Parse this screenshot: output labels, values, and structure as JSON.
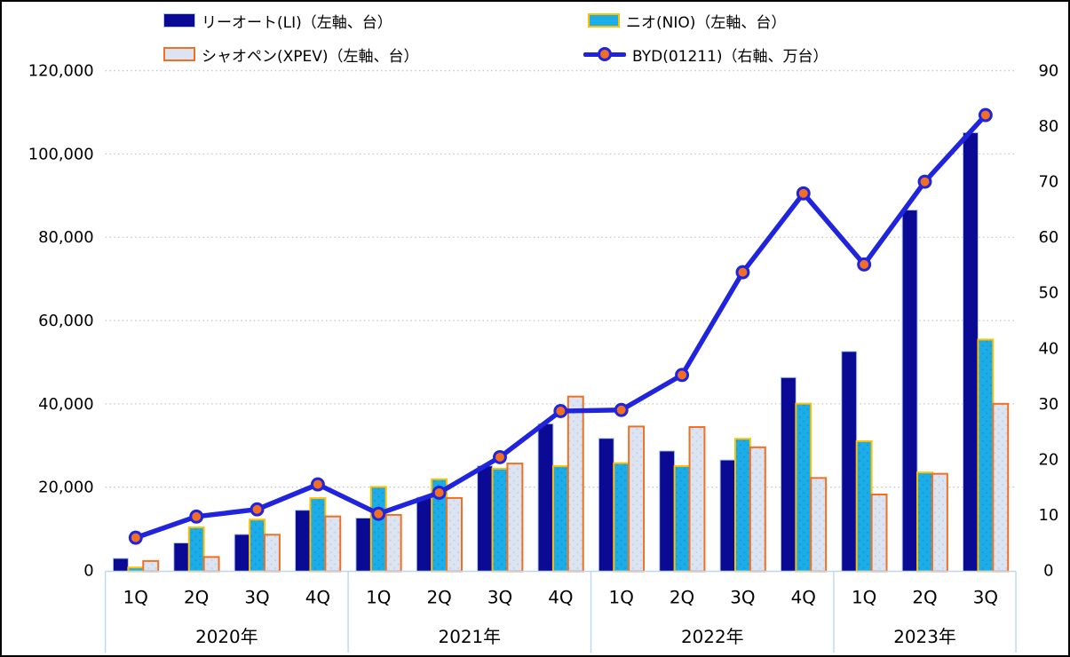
{
  "colors": {
    "li_fill": "#0A0A94",
    "li_border": "#AEC6E8",
    "nio_fill": "#1CACE8",
    "nio_dot": "#0E93CC",
    "nio_border": "#FFC000",
    "xpev_fill": "#DBE4F0",
    "xpev_dot": "#B9CBE6",
    "xpev_border": "#F26F21",
    "byd_line": "#2024DC",
    "byd_marker": "#F26E22",
    "gridline": "#C9C9C9",
    "axis_line": "#BDD7EE",
    "text": "#000000",
    "frame": "#000000"
  },
  "legend": {
    "items": [
      {
        "id": "li",
        "label": "リーオート(LI)（左軸、台）"
      },
      {
        "id": "nio",
        "label": "ニオ(NIO)（左軸、台）"
      },
      {
        "id": "xpev",
        "label": "シャオペン(XPEV)（左軸、台）"
      },
      {
        "id": "byd",
        "label": "BYD(01211)（右軸、万台）"
      }
    ]
  },
  "chart_data": {
    "type": "combo-bar-line",
    "title": "",
    "legend_position": "top",
    "grid": "horizontal-dotted",
    "categories": [
      "1Q",
      "2Q",
      "3Q",
      "4Q",
      "1Q",
      "2Q",
      "3Q",
      "4Q",
      "1Q",
      "2Q",
      "3Q",
      "4Q",
      "1Q",
      "2Q",
      "3Q"
    ],
    "year_groups": [
      {
        "label": "2020年",
        "quarters": 4
      },
      {
        "label": "2021年",
        "quarters": 4
      },
      {
        "label": "2022年",
        "quarters": 4
      },
      {
        "label": "2023年",
        "quarters": 3
      }
    ],
    "series": [
      {
        "id": "li",
        "name": "リーオート(LI)",
        "type": "bar",
        "axis": "left",
        "values": [
          2896,
          6604,
          8660,
          14464,
          12579,
          17575,
          25116,
          35221,
          31716,
          28687,
          26524,
          46319,
          52584,
          86533,
          105108
        ]
      },
      {
        "id": "nio",
        "name": "ニオ(NIO)",
        "type": "bar",
        "axis": "left",
        "values": [
          700,
          10331,
          12206,
          17353,
          20060,
          21896,
          24439,
          25034,
          25768,
          25059,
          31607,
          40052,
          31041,
          23520,
          55432
        ]
      },
      {
        "id": "xpev",
        "name": "シャオペン(XPEV)",
        "type": "bar",
        "axis": "left",
        "values": [
          2271,
          3228,
          8578,
          12964,
          13340,
          17398,
          25666,
          41751,
          34561,
          34422,
          29570,
          22204,
          18230,
          23205,
          40008
        ]
      },
      {
        "id": "byd",
        "name": "BYD(01211)",
        "type": "line",
        "axis": "right",
        "values": [
          5.9,
          9.7,
          11.0,
          15.5,
          10.2,
          14.0,
          20.4,
          28.7,
          28.9,
          35.2,
          53.7,
          67.9,
          55.1,
          70.0,
          82.0
        ]
      }
    ],
    "left_axis": {
      "unit": "台",
      "min": 0,
      "max": 120000,
      "tick_values": [
        0,
        20000,
        40000,
        60000,
        80000,
        100000,
        120000
      ],
      "tick_labels": [
        "0",
        "20,000",
        "40,000",
        "60,000",
        "80,000",
        "100,000",
        "120,000"
      ]
    },
    "right_axis": {
      "unit": "万台",
      "min": 0,
      "max": 90,
      "tick_values": [
        0,
        10,
        20,
        30,
        40,
        50,
        60,
        70,
        80,
        90
      ],
      "tick_labels": [
        "0",
        "10",
        "20",
        "30",
        "40",
        "50",
        "60",
        "70",
        "80",
        "90"
      ]
    }
  }
}
